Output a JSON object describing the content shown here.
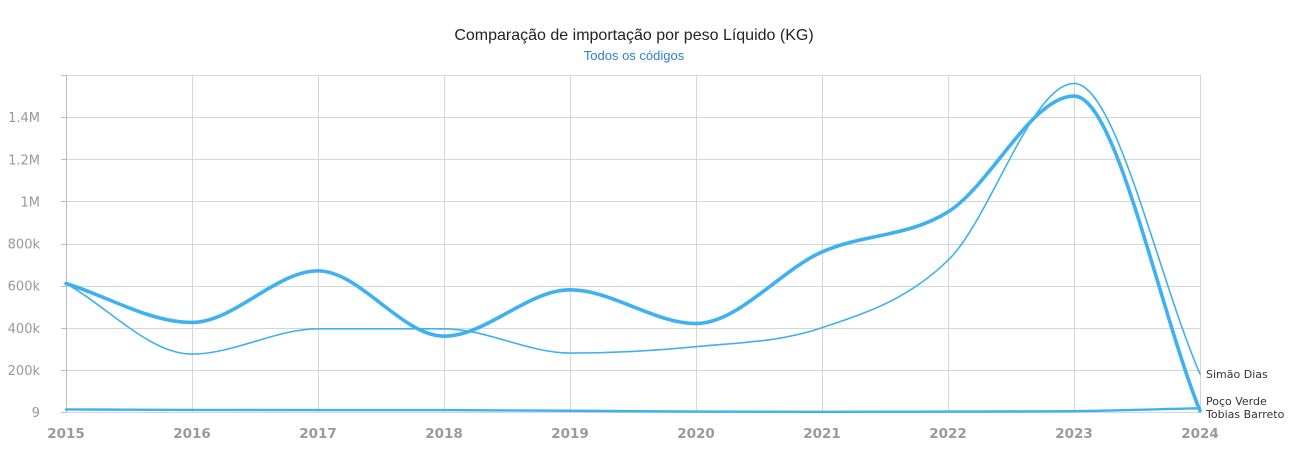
{
  "chart_data": {
    "type": "line",
    "title": "Comparação de importação por peso Líquido (KG)",
    "subtitle": "Todos os códigos",
    "x": [
      "2015",
      "2016",
      "2017",
      "2018",
      "2019",
      "2020",
      "2021",
      "2022",
      "2023",
      "2024"
    ],
    "y_tick_labels": [
      "9",
      "200k",
      "400k",
      "600k",
      "800k",
      "1M",
      "1.2M",
      "1.4M"
    ],
    "y_tick_values": [
      9,
      200000,
      400000,
      600000,
      800000,
      1000000,
      1200000,
      1400000
    ],
    "ylim": [
      0,
      1600000
    ],
    "grid": true,
    "line_color": "#3fb1f0",
    "series": [
      {
        "name": "Simão Dias",
        "values": [
          610000,
          275000,
          395000,
          395000,
          280000,
          310000,
          400000,
          720000,
          1560000,
          180000
        ],
        "emphasis": "thin"
      },
      {
        "name": "Tobias Barreto",
        "values": [
          610000,
          425000,
          670000,
          360000,
          580000,
          420000,
          760000,
          950000,
          1500000,
          5000
        ],
        "emphasis": "thick"
      },
      {
        "name": "Poço Verde",
        "values": [
          12000,
          10000,
          9000,
          9000,
          6000,
          2000,
          1000,
          2000,
          4000,
          18000
        ],
        "emphasis": "medium"
      }
    ]
  }
}
